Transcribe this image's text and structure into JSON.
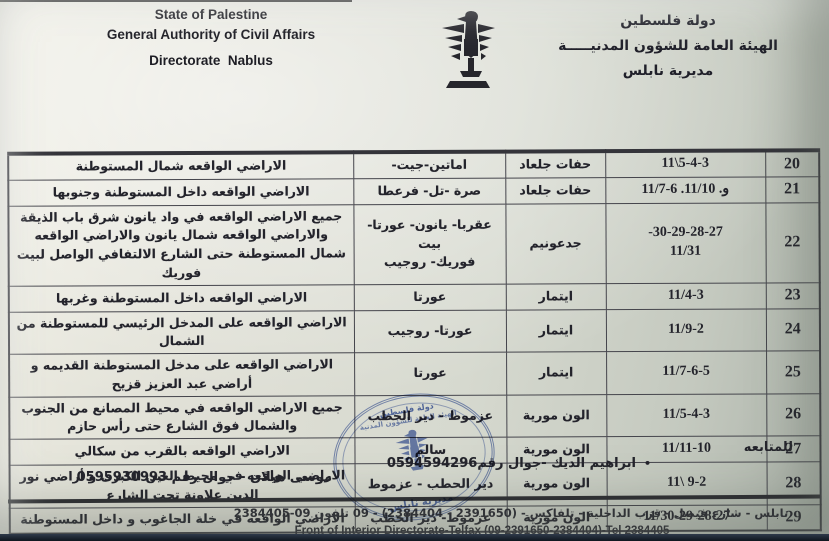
{
  "header": {
    "en_line1": "State of Palestine",
    "en_line2": "General Authority of Civil Affairs",
    "en_line3": "Directorate  Nablus",
    "ar_line1": "دولة فلسطين",
    "ar_line2": "الهيئة العامة للشؤون المدنيـــــة",
    "ar_line3": "مديرية نابلس",
    "emblem": "palestine-coat-of-arms-eagle"
  },
  "table": {
    "columns_rtl_order": [
      "row-number",
      "dates",
      "settlement",
      "villages",
      "description"
    ],
    "rows": [
      {
        "num": "20",
        "dates": [
          "11\\5-4-3"
        ],
        "settlement": "حفات جلعاد",
        "villages": [
          "اماتين-جيت-"
        ],
        "description": [
          "الاراضي الواقعه شمال المستوطنة"
        ]
      },
      {
        "num": "21",
        "dates": [
          "11/7-6 .و. 11/10"
        ],
        "settlement": "حفات جلعاد",
        "villages": [
          "صرة -تل- فرعطا"
        ],
        "description": [
          "الاراضي الواقعه داخل المستوطنة وجنوبها"
        ]
      },
      {
        "num": "22",
        "dates": [
          "-30-29-28-27",
          "11/31"
        ],
        "settlement": "جدعونيم",
        "villages": [
          "عقربا- يانون- عورتا- بيت",
          "فوريك- روجيب"
        ],
        "description": [
          "جميع الاراضي الواقعه في واد يانون شرق باب الذيقة والاراضي الواقعه شمال يانون والاراضي الواقعه",
          "شمال المستوطنة حتى الشارع الالتفافي الواصل لبيت فوريك"
        ]
      },
      {
        "num": "23",
        "dates": [
          "11/4-3"
        ],
        "settlement": "ايتمار",
        "villages": [
          "عورتا"
        ],
        "description": [
          "الاراضي الواقعه داخل المستوطنة وغربها"
        ]
      },
      {
        "num": "24",
        "dates": [
          "11/9-2"
        ],
        "settlement": "ايتمار",
        "villages": [
          "عورتا- روجيب"
        ],
        "description": [
          "الاراضي الواقعه على المدخل الرئيسي للمستوطنة من الشمال"
        ]
      },
      {
        "num": "25",
        "dates": [
          "11/7-6-5"
        ],
        "settlement": "ايتمار",
        "villages": [
          "عورتا"
        ],
        "description": [
          "الاراضي الواقعه على مدخل المستوطنة القديمه و أراضي عبد العزيز قزيح"
        ]
      },
      {
        "num": "26",
        "dates": [
          "11/5-4-3"
        ],
        "settlement": "الون مورية",
        "villages": [
          "عزموط - دير الحطب"
        ],
        "description": [
          "جميع الاراضي الواقعه في محيط المصانع من الجنوب والشمال فوق الشارع حتى رأس حازم"
        ]
      },
      {
        "num": "27",
        "dates": [
          "11/11-10"
        ],
        "settlement": "الون مورية",
        "villages": [
          "سالم"
        ],
        "description": [
          "الاراضي الواقعه بالقرب من سكالي"
        ]
      },
      {
        "num": "28",
        "dates": [
          "11\\ 9-2"
        ],
        "settlement": "الون مورية",
        "villages": [
          "دير الحطب - عزموط"
        ],
        "description": [
          "الاراضي الواقعه في محيط العين الكبرى و أراضي نور الدين علاونة تحت الشارع"
        ]
      },
      {
        "num": "29",
        "dates": [
          "11/30-29-28-27"
        ],
        "settlement": "الون مورية",
        "villages": [
          "عزموط- دير الحطب"
        ],
        "description": [
          "الاراضي الواقعه في خلة الجاغوب و داخل المستوطنة"
        ]
      }
    ]
  },
  "followup": {
    "label": "للمتابعه",
    "contacts": [
      {
        "bullet": "•",
        "text": "ابراهيم الديك -جوال رقم0594594296"
      },
      {
        "bullet": "",
        "text": "موسى هيلان - جوال رقم 0595930993"
      }
    ]
  },
  "stamp": {
    "shape": "blue-oval-official-stamp",
    "text_top": "دولة فلسطين",
    "text_middle": "الهيئة العامة للشؤون المدنية",
    "text_bottom": "مديرية نابلس",
    "color": "#4c66b2"
  },
  "footer": {
    "ar": "نابلس - شارع فيصل - قرب الداخلية - تلفاكس - (2391650 - 2384404) - 09 تلفون 09-2384405",
    "en": "Front of Interior Directorate-Telfax (09-2391650-2384404)-Tel 2384405"
  },
  "colors": {
    "paper": "#d6d9cf",
    "ink": "#23232b",
    "stamp_blue": "#4c66b2",
    "photo_edge": "#10161e"
  }
}
